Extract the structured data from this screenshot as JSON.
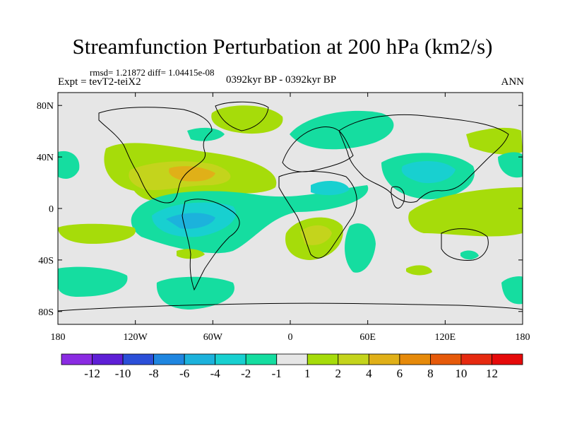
{
  "title": "Streamfunction Perturbation at 200 hPa (km2/s)",
  "rmsd_text": "rmsd= 1.21872  diff= 1.04415e-08",
  "experiment_text": "Expt = tevT2-teiX2",
  "period_text": "0392kyr BP - 0392kyr BP",
  "season_text": "ANN",
  "map": {
    "background_color": "#e6e6e6",
    "coastline_color": "#000000",
    "x_ticks": [
      {
        "label": "180",
        "lon": -180
      },
      {
        "label": "120W",
        "lon": -120
      },
      {
        "label": "60W",
        "lon": -60
      },
      {
        "label": "0",
        "lon": 0
      },
      {
        "label": "60E",
        "lon": 60
      },
      {
        "label": "120E",
        "lon": 120
      },
      {
        "label": "180",
        "lon": 180
      }
    ],
    "y_ticks": [
      {
        "label": "80N",
        "lat": 80
      },
      {
        "label": "40N",
        "lat": 40
      },
      {
        "label": "0",
        "lat": 0
      },
      {
        "label": "40S",
        "lat": -40
      },
      {
        "label": "80S",
        "lat": -80
      }
    ]
  },
  "colorbar": {
    "colors": [
      "#8a2be2",
      "#5e1fd6",
      "#2b4fd8",
      "#1f86e0",
      "#1cb2dc",
      "#18d0d0",
      "#15dda0",
      "#e6e6e6",
      "#a6dc0a",
      "#c4d41c",
      "#e0b018",
      "#e68a0a",
      "#e65a0a",
      "#e62a10",
      "#e60a0a"
    ],
    "labels": [
      "-12",
      "-10",
      "-8",
      "-6",
      "-4",
      "-2",
      "-1",
      "1",
      "2",
      "4",
      "6",
      "8",
      "10",
      "12"
    ]
  }
}
